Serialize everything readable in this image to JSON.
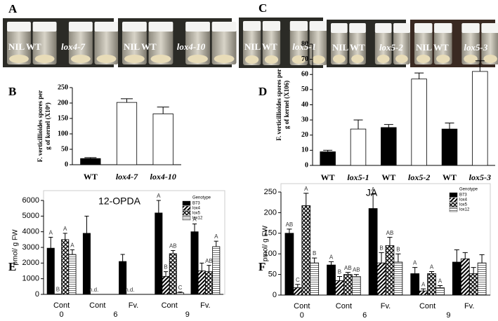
{
  "photos": [
    {
      "letter": "A",
      "images": [
        [
          "NIL",
          "WT",
          "lox4-7"
        ],
        [
          "NIL",
          "WT",
          "lox4-10"
        ]
      ]
    },
    {
      "letter": "C",
      "images": [
        [
          "NIL",
          "WT",
          "lox5-1"
        ],
        [
          "NIL",
          "WT",
          "lox5-2"
        ],
        [
          "NIL",
          "WT",
          "lox5-3"
        ]
      ]
    }
  ],
  "chart_data": [
    {
      "type": "bar",
      "letter": "B",
      "ylabel": [
        "F. verticillioides spores per",
        "g of kernel (X10⁶)"
      ],
      "categories": [
        "WT",
        "lox4-7",
        "lox4-10"
      ],
      "series": [
        {
          "values": [
            20,
            202,
            165
          ],
          "errors": [
            3,
            12,
            22
          ],
          "colors": [
            "#000000",
            "#ffffff",
            "#ffffff"
          ]
        }
      ],
      "ylim": [
        0,
        250
      ],
      "yticks": [
        0,
        50,
        100,
        150,
        200,
        250
      ],
      "grid": false
    },
    {
      "type": "bar",
      "letter": "D",
      "ylabel": [
        "F. verticillioides spores per",
        "g of kernel (X106)"
      ],
      "categories": [
        "WT",
        "lox5-1",
        "WT",
        "lox5-2",
        "WT",
        "lox5-3"
      ],
      "series": [
        {
          "values": [
            9,
            24,
            25,
            57,
            24,
            62
          ],
          "errors": [
            1,
            6,
            2,
            4,
            4,
            7
          ],
          "colors": [
            "#000000",
            "#ffffff",
            "#000000",
            "#ffffff",
            "#000000",
            "#ffffff"
          ]
        }
      ],
      "ylim": [
        0,
        80
      ],
      "yticks": [
        0,
        10,
        20,
        30,
        40,
        50,
        60,
        70,
        80
      ],
      "grid": false
    },
    {
      "type": "grouped_bar",
      "letter": "E",
      "title": "12-OPDA",
      "ylabel": [
        "pmol/ g FW"
      ],
      "groups": [
        {
          "name": "0",
          "categories": [
            "Cont"
          ]
        },
        {
          "name": "6",
          "categories": [
            "Cont",
            "Fv."
          ]
        },
        {
          "name": "9",
          "categories": [
            "Cont",
            "Fv."
          ]
        }
      ],
      "legend_title": "Genotype",
      "legend": "upper right",
      "series": [
        {
          "name": "B73",
          "pattern": "solid",
          "values": [
            2950,
            3900,
            2100,
            5200,
            4000
          ],
          "errors": [
            700,
            1100,
            450,
            800,
            500
          ],
          "letters": [
            "A",
            null,
            null,
            "A",
            "A"
          ]
        },
        {
          "name": "lox4",
          "pattern": "diagonal",
          "values": [
            20,
            null,
            null,
            1150,
            1500
          ],
          "errors": [
            0,
            null,
            null,
            300,
            500
          ],
          "letters": [
            "B",
            "n.d.",
            "n.d.",
            "B",
            null
          ]
        },
        {
          "name": "lox5",
          "pattern": "cross",
          "values": [
            3500,
            null,
            null,
            2600,
            1450
          ],
          "errors": [
            400,
            null,
            null,
            200,
            400
          ],
          "letters": [
            "A",
            null,
            null,
            "AB",
            "AB"
          ]
        },
        {
          "name": "lox12",
          "pattern": "horizontal",
          "values": [
            2550,
            null,
            null,
            100,
            3050
          ],
          "errors": [
            300,
            null,
            null,
            50,
            350
          ],
          "letters": [
            "A",
            null,
            null,
            "C",
            "A"
          ]
        }
      ],
      "ylim": [
        0,
        6000
      ],
      "yticks": [
        0,
        1000,
        2000,
        3000,
        4000,
        5000,
        6000
      ],
      "grid": false
    },
    {
      "type": "grouped_bar",
      "letter": "F",
      "title": "JA",
      "ylabel": [
        "pmol/ g FW"
      ],
      "groups": [
        {
          "name": "0",
          "categories": [
            "Cont"
          ]
        },
        {
          "name": "6",
          "categories": [
            "Cont",
            "Fv."
          ]
        },
        {
          "name": "9",
          "categories": [
            "Cont",
            "Fv."
          ]
        }
      ],
      "legend_title": "Genotype",
      "legend": "upper right",
      "series": [
        {
          "name": "B73",
          "pattern": "solid",
          "values": [
            150,
            73,
            210,
            52,
            80
          ],
          "errors": [
            10,
            8,
            35,
            15,
            30
          ],
          "letters": [
            "AB",
            "A",
            "A",
            "A",
            null
          ]
        },
        {
          "name": "lox4",
          "pattern": "diagonal",
          "values": [
            18,
            35,
            78,
            10,
            88
          ],
          "errors": [
            8,
            10,
            25,
            5,
            15
          ],
          "letters": [
            "C",
            "B",
            "B",
            "A",
            null
          ]
        },
        {
          "name": "lox5",
          "pattern": "cross",
          "values": [
            217,
            50,
            120,
            52,
            52
          ],
          "errors": [
            30,
            5,
            20,
            5,
            15
          ],
          "letters": [
            "A",
            "AB",
            "AB",
            "A",
            null
          ]
        },
        {
          "name": "lox12",
          "pattern": "horizontal",
          "values": [
            78,
            45,
            80,
            18,
            78
          ],
          "errors": [
            12,
            5,
            20,
            5,
            20
          ],
          "letters": [
            "B",
            "AB",
            "B",
            "A",
            null
          ]
        }
      ],
      "ylim": [
        0,
        250
      ],
      "yticks": [
        0,
        50,
        100,
        150,
        200,
        250
      ],
      "grid": false
    }
  ]
}
